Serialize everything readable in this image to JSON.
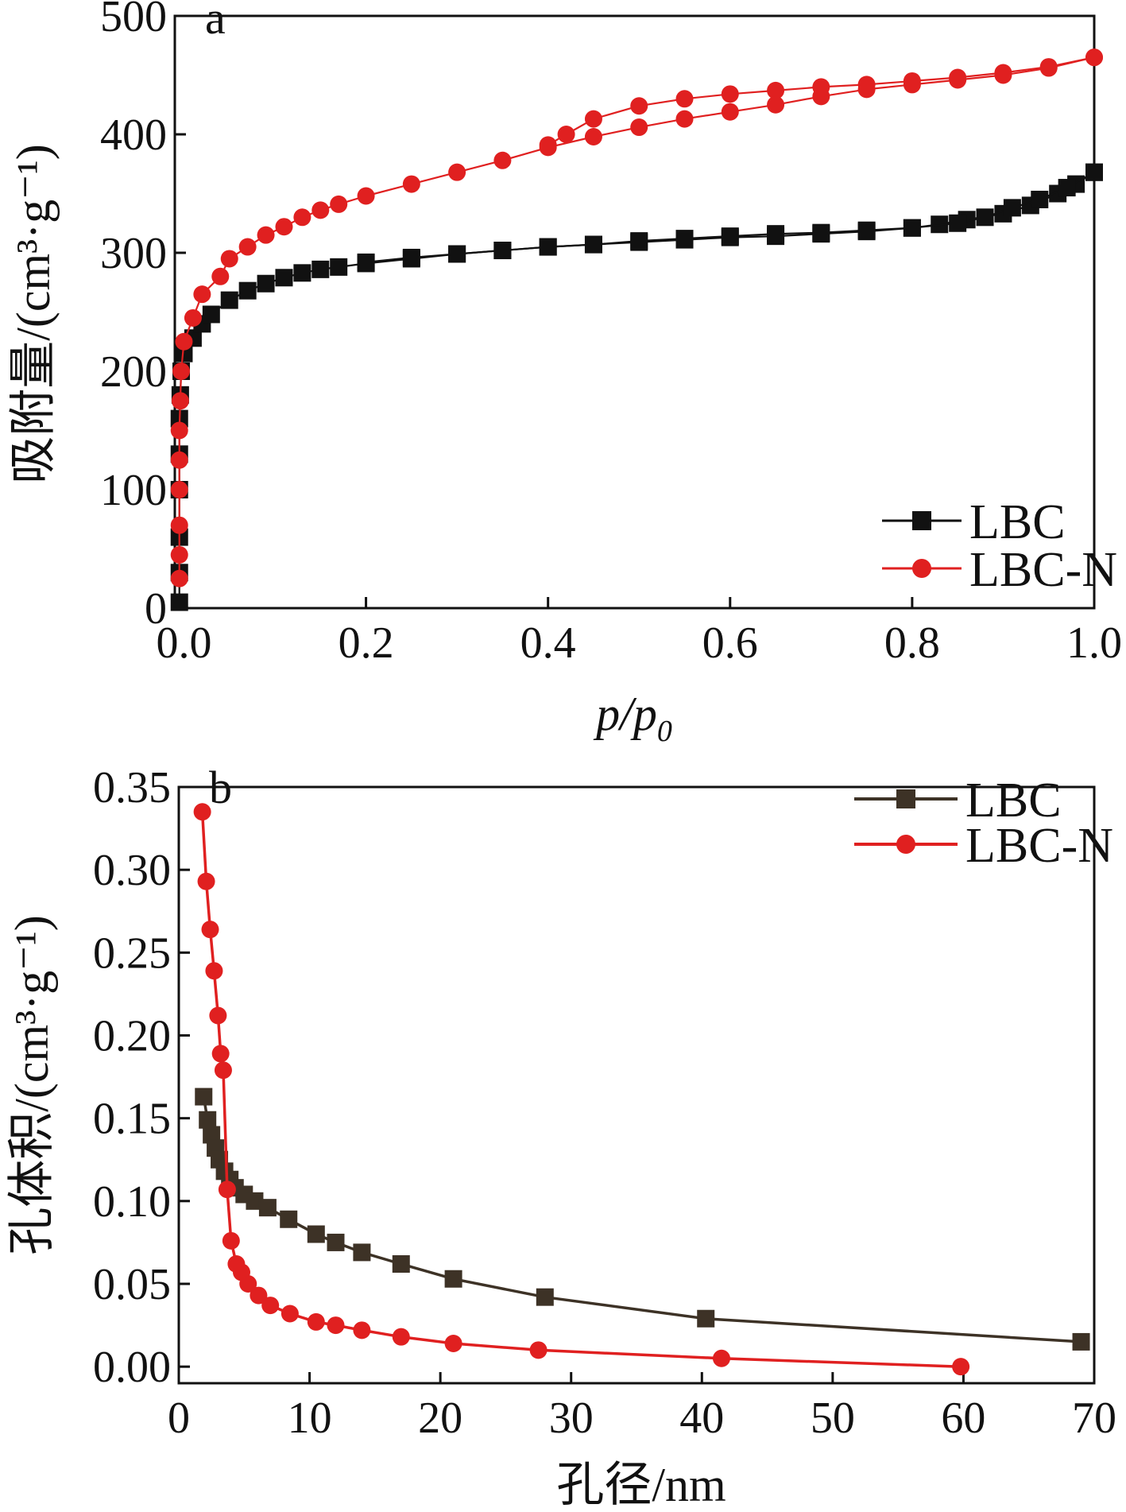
{
  "chart_data": [
    {
      "type": "line",
      "panel": "a",
      "xlabel_italic_base": "p/p",
      "xlabel_subscript": "0",
      "ylabel": "吸附量/(cm³·g⁻¹)",
      "xlim": [
        -0.01,
        1.0
      ],
      "ylim": [
        0,
        500
      ],
      "xticks": [
        0.0,
        0.2,
        0.4,
        0.6,
        0.8,
        1.0
      ],
      "xtick_labels": [
        "0.0",
        "0.2",
        "0.4",
        "0.6",
        "0.8",
        "1.0"
      ],
      "yticks": [
        0,
        100,
        200,
        300,
        400,
        500
      ],
      "ytick_labels": [
        "0",
        "100",
        "200",
        "300",
        "400",
        "500"
      ],
      "legend_position": "bottom-right",
      "series": [
        {
          "name": "LBC",
          "color": "#111111",
          "marker": "square",
          "branches": [
            [
              [
                -0.005,
                5
              ],
              [
                -0.005,
                30
              ],
              [
                -0.005,
                60
              ],
              [
                -0.005,
                100
              ],
              [
                -0.005,
                130
              ],
              [
                -0.005,
                160
              ],
              [
                -0.004,
                180
              ],
              [
                -0.003,
                200
              ],
              [
                0.0,
                215
              ],
              [
                0.01,
                228
              ],
              [
                0.02,
                240
              ],
              [
                0.03,
                248
              ],
              [
                0.05,
                260
              ],
              [
                0.07,
                268
              ],
              [
                0.09,
                274
              ],
              [
                0.11,
                279
              ],
              [
                0.13,
                283
              ],
              [
                0.15,
                286
              ],
              [
                0.17,
                288
              ],
              [
                0.2,
                291
              ],
              [
                0.25,
                295
              ],
              [
                0.3,
                299
              ],
              [
                0.35,
                302
              ],
              [
                0.4,
                305
              ],
              [
                0.45,
                307
              ],
              [
                0.5,
                309
              ],
              [
                0.55,
                311
              ],
              [
                0.6,
                313
              ],
              [
                0.65,
                314
              ],
              [
                0.7,
                316
              ],
              [
                0.75,
                318
              ],
              [
                0.8,
                321
              ],
              [
                0.83,
                324
              ],
              [
                0.86,
                328
              ],
              [
                0.9,
                333
              ],
              [
                0.93,
                340
              ],
              [
                0.96,
                350
              ],
              [
                0.98,
                358
              ],
              [
                1.0,
                368
              ]
            ],
            [
              [
                1.0,
                368
              ],
              [
                0.97,
                355
              ],
              [
                0.94,
                345
              ],
              [
                0.91,
                338
              ],
              [
                0.88,
                330
              ],
              [
                0.85,
                325
              ],
              [
                0.8,
                321
              ],
              [
                0.75,
                319
              ],
              [
                0.7,
                317
              ],
              [
                0.65,
                316
              ],
              [
                0.6,
                314
              ],
              [
                0.55,
                312
              ],
              [
                0.5,
                310
              ],
              [
                0.45,
                307
              ],
              [
                0.4,
                305
              ],
              [
                0.35,
                302
              ],
              [
                0.3,
                299
              ],
              [
                0.25,
                296
              ],
              [
                0.2,
                292
              ]
            ]
          ]
        },
        {
          "name": "LBC-N",
          "color": "#e02020",
          "marker": "circle",
          "branches": [
            [
              [
                -0.005,
                25
              ],
              [
                -0.005,
                45
              ],
              [
                -0.005,
                70
              ],
              [
                -0.005,
                100
              ],
              [
                -0.005,
                125
              ],
              [
                -0.005,
                150
              ],
              [
                -0.004,
                175
              ],
              [
                -0.003,
                200
              ],
              [
                0.0,
                225
              ],
              [
                0.01,
                245
              ],
              [
                0.02,
                265
              ],
              [
                0.04,
                280
              ],
              [
                0.05,
                295
              ],
              [
                0.07,
                305
              ],
              [
                0.09,
                315
              ],
              [
                0.11,
                322
              ],
              [
                0.13,
                330
              ],
              [
                0.15,
                336
              ],
              [
                0.17,
                341
              ],
              [
                0.2,
                348
              ],
              [
                0.25,
                358
              ],
              [
                0.3,
                368
              ],
              [
                0.35,
                378
              ],
              [
                0.4,
                389
              ],
              [
                0.45,
                398
              ],
              [
                0.5,
                406
              ],
              [
                0.55,
                413
              ],
              [
                0.6,
                419
              ],
              [
                0.65,
                425
              ],
              [
                0.7,
                432
              ],
              [
                0.75,
                438
              ],
              [
                0.8,
                442
              ],
              [
                0.85,
                446
              ],
              [
                0.9,
                450
              ],
              [
                0.95,
                456
              ],
              [
                1.0,
                465
              ]
            ],
            [
              [
                1.0,
                465
              ],
              [
                0.95,
                457
              ],
              [
                0.9,
                452
              ],
              [
                0.85,
                448
              ],
              [
                0.8,
                445
              ],
              [
                0.75,
                442
              ],
              [
                0.7,
                440
              ],
              [
                0.65,
                437
              ],
              [
                0.6,
                434
              ],
              [
                0.55,
                430
              ],
              [
                0.5,
                424
              ],
              [
                0.45,
                413
              ],
              [
                0.42,
                400
              ],
              [
                0.4,
                391
              ]
            ]
          ]
        }
      ]
    },
    {
      "type": "line",
      "panel": "b",
      "xlabel": "孔径/nm",
      "ylabel": "孔体积/(cm³·g⁻¹)",
      "xlim": [
        0,
        70
      ],
      "ylim": [
        -0.01,
        0.35
      ],
      "xticks": [
        0,
        10,
        20,
        30,
        40,
        50,
        60,
        70
      ],
      "xtick_labels": [
        "0",
        "10",
        "20",
        "30",
        "40",
        "50",
        "60",
        "70"
      ],
      "yticks": [
        0.0,
        0.05,
        0.1,
        0.15,
        0.2,
        0.25,
        0.3,
        0.35
      ],
      "ytick_labels": [
        "0.00",
        "0.05",
        "0.10",
        "0.15",
        "0.20",
        "0.25",
        "0.30",
        "0.35"
      ],
      "legend_position": "top-right",
      "series": [
        {
          "name": "LBC",
          "color": "#3d3226",
          "marker": "square",
          "points": [
            [
              1.9,
              0.163
            ],
            [
              2.2,
              0.149
            ],
            [
              2.5,
              0.14
            ],
            [
              2.8,
              0.132
            ],
            [
              3.1,
              0.125
            ],
            [
              3.5,
              0.118
            ],
            [
              3.9,
              0.113
            ],
            [
              4.3,
              0.108
            ],
            [
              5.0,
              0.104
            ],
            [
              5.8,
              0.1
            ],
            [
              6.8,
              0.096
            ],
            [
              8.4,
              0.089
            ],
            [
              10.5,
              0.08
            ],
            [
              12.0,
              0.075
            ],
            [
              14.0,
              0.069
            ],
            [
              17.0,
              0.062
            ],
            [
              21.0,
              0.053
            ],
            [
              28.0,
              0.042
            ],
            [
              40.3,
              0.029
            ],
            [
              69.0,
              0.015
            ]
          ]
        },
        {
          "name": "LBC-N",
          "color": "#e02020",
          "marker": "circle",
          "points": [
            [
              1.8,
              0.335
            ],
            [
              2.1,
              0.293
            ],
            [
              2.4,
              0.264
            ],
            [
              2.7,
              0.239
            ],
            [
              3.0,
              0.212
            ],
            [
              3.2,
              0.189
            ],
            [
              3.4,
              0.179
            ],
            [
              3.7,
              0.107
            ],
            [
              4.0,
              0.076
            ],
            [
              4.4,
              0.062
            ],
            [
              4.8,
              0.057
            ],
            [
              5.3,
              0.05
            ],
            [
              6.1,
              0.043
            ],
            [
              7.0,
              0.037
            ],
            [
              8.5,
              0.032
            ],
            [
              10.5,
              0.027
            ],
            [
              12.0,
              0.025
            ],
            [
              14.0,
              0.022
            ],
            [
              17.0,
              0.018
            ],
            [
              21.0,
              0.014
            ],
            [
              27.5,
              0.01
            ],
            [
              41.5,
              0.005
            ],
            [
              59.8,
              0.0
            ]
          ]
        }
      ]
    }
  ],
  "panel_a": {
    "letter": "a",
    "ylabel": "吸附量/(cm³·g⁻¹)",
    "xlabel_italic_base": "p/p",
    "xlabel_subscript": "0",
    "legend": [
      "LBC",
      "LBC-N"
    ]
  },
  "panel_b": {
    "letter": "b",
    "ylabel": "孔体积/(cm³·g⁻¹)",
    "xlabel": "孔径/nm",
    "legend": [
      "LBC",
      "LBC-N"
    ]
  }
}
